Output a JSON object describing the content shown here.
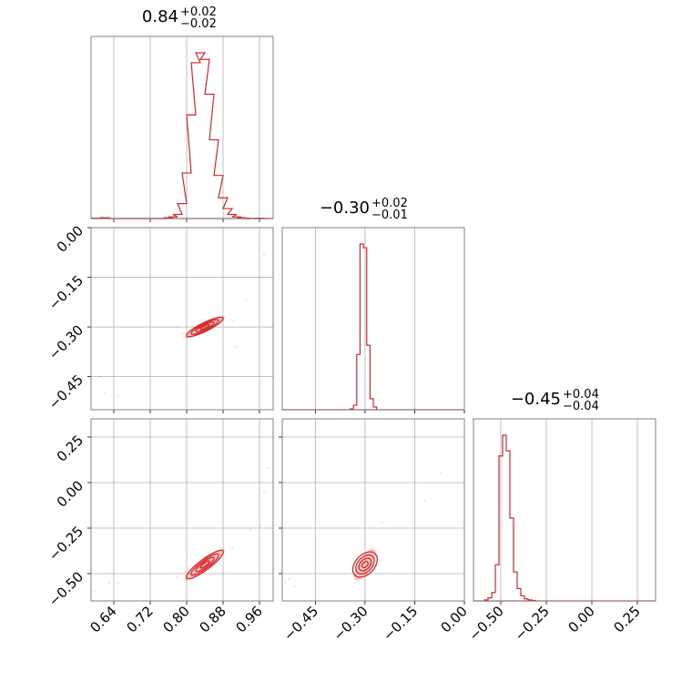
{
  "chart_data": {
    "type": "corner",
    "colors": {
      "series": "#d62728",
      "grid": "#b0b0b0",
      "frame": "#808080"
    },
    "parameters": [
      {
        "value": "0.84",
        "upper": "+0.02",
        "lower": "−0.02",
        "range": [
          0.59,
          0.99
        ],
        "ticks": [
          0.64,
          0.72,
          0.8,
          0.88,
          0.96
        ],
        "tick_labels": [
          "0.64",
          "0.72",
          "0.80",
          "0.88",
          "0.96"
        ]
      },
      {
        "value": "−0.30",
        "upper": "+0.02",
        "lower": "−0.01",
        "range": [
          -0.55,
          0.0
        ],
        "ticks": [
          -0.45,
          -0.3,
          -0.15,
          0.0
        ],
        "tick_labels": [
          "−0.45",
          "−0.30",
          "−0.15",
          "0.00"
        ]
      },
      {
        "value": "−0.45",
        "upper": "+0.04",
        "lower": "−0.04",
        "range": [
          -0.65,
          0.35
        ],
        "ticks": [
          -0.5,
          -0.25,
          0.0,
          0.25
        ],
        "tick_labels": [
          "−0.50",
          "−0.25",
          "0.00",
          "0.25"
        ]
      }
    ],
    "histograms": [
      {
        "param": 0,
        "bins": [
          [
            0.6,
            0.5
          ],
          [
            0.62,
            1
          ],
          [
            0.64,
            0
          ],
          [
            0.66,
            0
          ],
          [
            0.68,
            0
          ],
          [
            0.7,
            0
          ],
          [
            0.72,
            0
          ],
          [
            0.74,
            0
          ],
          [
            0.76,
            1
          ],
          [
            0.77,
            2
          ],
          [
            0.78,
            5
          ],
          [
            0.79,
            18
          ],
          [
            0.8,
            55
          ],
          [
            0.81,
            125
          ],
          [
            0.82,
            188
          ],
          [
            0.83,
            200
          ],
          [
            0.84,
            192
          ],
          [
            0.85,
            150
          ],
          [
            0.86,
            95
          ],
          [
            0.87,
            52
          ],
          [
            0.88,
            25
          ],
          [
            0.89,
            12
          ],
          [
            0.9,
            5
          ],
          [
            0.91,
            2
          ],
          [
            0.92,
            1
          ],
          [
            0.93,
            0.5
          ],
          [
            0.94,
            0
          ],
          [
            0.95,
            0
          ],
          [
            0.96,
            0.5
          ],
          [
            0.97,
            0
          ]
        ]
      },
      {
        "param": 1,
        "bins": [
          [
            -0.34,
            1
          ],
          [
            -0.33,
            5
          ],
          [
            -0.32,
            60
          ],
          [
            -0.31,
            180
          ],
          [
            -0.3,
            176
          ],
          [
            -0.29,
            70
          ],
          [
            -0.28,
            12
          ],
          [
            -0.27,
            3
          ]
        ]
      },
      {
        "param": 2,
        "bins": [
          [
            -0.58,
            1
          ],
          [
            -0.56,
            3
          ],
          [
            -0.54,
            8
          ],
          [
            -0.52,
            35
          ],
          [
            -0.5,
            140
          ],
          [
            -0.48,
            160
          ],
          [
            -0.46,
            145
          ],
          [
            -0.44,
            80
          ],
          [
            -0.42,
            28
          ],
          [
            -0.4,
            12
          ],
          [
            -0.38,
            5
          ],
          [
            -0.36,
            2
          ],
          [
            -0.34,
            1
          ],
          [
            -0.32,
            0.5
          ]
        ]
      }
    ],
    "pairs": [
      {
        "x_param": 0,
        "y_param": 1,
        "center": [
          0.84,
          -0.3
        ],
        "spread": [
          0.02,
          0.015
        ],
        "correlation": 0.9,
        "outliers": [
          [
            0.61,
            -0.45
          ],
          [
            0.62,
            -0.5
          ],
          [
            0.65,
            -0.51
          ],
          [
            0.78,
            -0.3
          ],
          [
            0.79,
            -0.32
          ],
          [
            0.9,
            -0.28
          ],
          [
            0.93,
            -0.22
          ],
          [
            0.96,
            -0.15
          ],
          [
            0.97,
            -0.08
          ],
          [
            0.91,
            -0.36
          ]
        ]
      },
      {
        "x_param": 0,
        "y_param": 2,
        "center": [
          0.84,
          -0.45
        ],
        "spread": [
          0.02,
          0.04
        ],
        "correlation": 0.93,
        "outliers": [
          [
            0.6,
            -0.6
          ],
          [
            0.63,
            -0.55
          ],
          [
            0.65,
            -0.55
          ],
          [
            0.78,
            -0.52
          ],
          [
            0.9,
            -0.36
          ],
          [
            0.94,
            -0.26
          ],
          [
            0.96,
            -0.24
          ],
          [
            0.97,
            -0.05
          ],
          [
            0.98,
            0.08
          ]
        ]
      },
      {
        "x_param": 1,
        "y_param": 2,
        "center": [
          -0.3,
          -0.45
        ],
        "spread": [
          0.015,
          0.04
        ],
        "correlation": 0.75,
        "outliers": [
          [
            -0.54,
            -0.55
          ],
          [
            -0.53,
            -0.53
          ],
          [
            -0.51,
            -0.57
          ],
          [
            -0.33,
            -0.55
          ],
          [
            -0.25,
            -0.22
          ],
          [
            -0.12,
            -0.1
          ],
          [
            -0.07,
            0.05
          ],
          [
            -0.28,
            -0.35
          ]
        ]
      }
    ]
  }
}
